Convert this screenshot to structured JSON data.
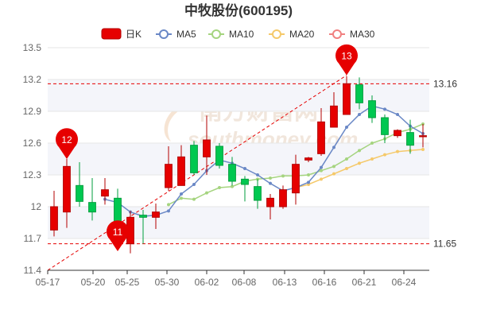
{
  "title": "中牧股份(600195)",
  "legend": [
    {
      "name": "日K",
      "kind": "candle",
      "color": "#e60000"
    },
    {
      "name": "MA5",
      "kind": "line",
      "color": "#6a88c6"
    },
    {
      "name": "MA10",
      "kind": "line",
      "color": "#a5d47f"
    },
    {
      "name": "MA20",
      "kind": "line",
      "color": "#f5c96a"
    },
    {
      "name": "MA30",
      "kind": "line",
      "color": "#f08080"
    }
  ],
  "chart_data": {
    "type": "candlestick",
    "title": "中牧股份(600195)",
    "ylim": [
      11.4,
      13.5
    ],
    "y_ticks": [
      "13.5",
      "13.2",
      "12.9",
      "12.6",
      "12.3",
      "12",
      "11.7",
      "11.4"
    ],
    "x_ticks": [
      "05-17",
      "05-20",
      "05-25",
      "05-30",
      "06-02",
      "06-08",
      "06-13",
      "06-16",
      "06-21",
      "06-24"
    ],
    "up_color": "#e60000",
    "down_color": "#00c851",
    "candles": [
      {
        "o": 11.78,
        "c": 12.0,
        "h": 12.15,
        "l": 11.72
      },
      {
        "o": 11.95,
        "c": 12.38,
        "h": 12.45,
        "l": 11.8
      },
      {
        "o": 12.2,
        "c": 12.05,
        "h": 12.42,
        "l": 12.0
      },
      {
        "o": 12.04,
        "c": 11.95,
        "h": 12.27,
        "l": 11.87
      },
      {
        "o": 12.1,
        "c": 12.16,
        "h": 12.27,
        "l": 12.02
      },
      {
        "o": 12.08,
        "c": 11.65,
        "h": 12.17,
        "l": 11.61
      },
      {
        "o": 11.65,
        "c": 11.9,
        "h": 11.96,
        "l": 11.56
      },
      {
        "o": 11.92,
        "c": 11.9,
        "h": 11.97,
        "l": 11.65
      },
      {
        "o": 11.9,
        "c": 11.95,
        "h": 12.03,
        "l": 11.79
      },
      {
        "o": 12.18,
        "c": 12.4,
        "h": 12.57,
        "l": 12.15
      },
      {
        "o": 12.2,
        "c": 12.47,
        "h": 12.58,
        "l": 12.2
      },
      {
        "o": 12.58,
        "c": 12.32,
        "h": 12.62,
        "l": 12.3
      },
      {
        "o": 12.47,
        "c": 12.63,
        "h": 12.86,
        "l": 12.3
      },
      {
        "o": 12.57,
        "c": 12.39,
        "h": 12.6,
        "l": 12.36
      },
      {
        "o": 12.4,
        "c": 12.24,
        "h": 12.47,
        "l": 12.2
      },
      {
        "o": 12.26,
        "c": 12.21,
        "h": 12.29,
        "l": 12.05
      },
      {
        "o": 12.19,
        "c": 12.06,
        "h": 12.26,
        "l": 11.98
      },
      {
        "o": 12.0,
        "c": 12.08,
        "h": 12.12,
        "l": 11.88
      },
      {
        "o": 12.0,
        "c": 12.16,
        "h": 12.2,
        "l": 11.98
      },
      {
        "o": 12.13,
        "c": 12.4,
        "h": 12.49,
        "l": 12.02
      },
      {
        "o": 12.44,
        "c": 12.46,
        "h": 12.47,
        "l": 12.42
      },
      {
        "o": 12.5,
        "c": 12.8,
        "h": 12.93,
        "l": 12.48
      },
      {
        "o": 12.75,
        "c": 12.95,
        "h": 13.08,
        "l": 12.75
      },
      {
        "o": 12.87,
        "c": 13.16,
        "h": 13.23,
        "l": 12.87
      },
      {
        "o": 13.15,
        "c": 12.98,
        "h": 13.22,
        "l": 12.92
      },
      {
        "o": 13.0,
        "c": 12.84,
        "h": 13.05,
        "l": 12.79
      },
      {
        "o": 12.84,
        "c": 12.68,
        "h": 12.87,
        "l": 12.6
      },
      {
        "o": 12.67,
        "c": 12.72,
        "h": 12.73,
        "l": 12.65
      },
      {
        "o": 12.7,
        "c": 12.58,
        "h": 12.82,
        "l": 12.5
      },
      {
        "o": 12.66,
        "c": 12.67,
        "h": 12.78,
        "l": 12.56
      }
    ],
    "ma5": [
      null,
      null,
      null,
      null,
      12.07,
      12.04,
      11.95,
      11.91,
      11.92,
      11.96,
      12.12,
      12.21,
      12.34,
      12.44,
      12.41,
      12.36,
      12.3,
      12.22,
      12.15,
      12.18,
      12.23,
      12.37,
      12.56,
      12.75,
      12.87,
      12.95,
      12.92,
      12.87,
      12.76,
      12.69
    ],
    "ma10": [
      null,
      null,
      null,
      null,
      null,
      null,
      null,
      null,
      null,
      12.02,
      12.08,
      12.07,
      12.13,
      12.18,
      12.19,
      12.24,
      12.26,
      12.27,
      12.29,
      12.29,
      12.3,
      12.34,
      12.38,
      12.45,
      12.53,
      12.6,
      12.64,
      12.7,
      12.73,
      12.78
    ],
    "ma20": [
      null,
      null,
      null,
      null,
      null,
      null,
      null,
      null,
      null,
      null,
      null,
      null,
      null,
      null,
      null,
      null,
      null,
      null,
      null,
      12.18,
      12.21,
      12.26,
      12.31,
      12.36,
      12.41,
      12.45,
      12.49,
      12.52,
      12.53,
      12.54
    ],
    "markers": [
      {
        "label": "12",
        "index": 1,
        "value": 12.45
      },
      {
        "label": "11",
        "index": 5,
        "value": 11.58
      },
      {
        "label": "13",
        "index": 23,
        "value": 13.24
      }
    ],
    "ref_lines": [
      {
        "label": "13.16",
        "value": 13.16
      },
      {
        "label": "11.65",
        "value": 11.65
      }
    ],
    "trend_line": {
      "from": {
        "index": 0,
        "value": 11.4
      },
      "to": {
        "index": 23,
        "value": 13.24
      }
    }
  }
}
